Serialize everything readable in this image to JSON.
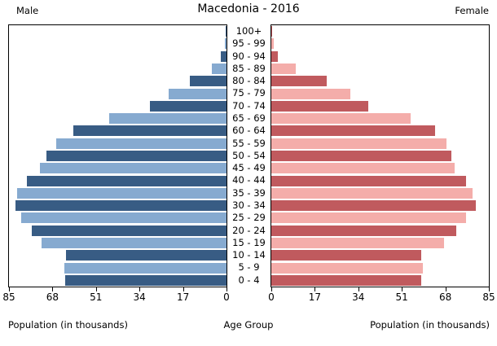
{
  "header": {
    "male_label": "Male",
    "female_label": "Female",
    "title": "Macedonia - 2016"
  },
  "footer": {
    "left_label": "Population (in thousands)",
    "center_label": "Age Group",
    "right_label": "Population (in thousands)"
  },
  "axis": {
    "left_ticks": [
      85,
      68,
      51,
      34,
      17,
      0
    ],
    "right_ticks": [
      0,
      17,
      34,
      51,
      68,
      85
    ]
  },
  "colors": {
    "male_dark": "#385c84",
    "male_light": "#86aad0",
    "female_dark": "#c05a5e",
    "female_light": "#f4adaa",
    "axis": "#000000"
  },
  "chart_data": {
    "type": "bar",
    "subtype": "population-pyramid",
    "title": "Macedonia - 2016",
    "xlabel": "Population (in thousands)",
    "ylabel": "Age Group",
    "xlim": [
      0,
      85
    ],
    "unit": "thousands",
    "grid": false,
    "categories_bottom_to_top": [
      "0 - 4",
      "5 - 9",
      "10 - 14",
      "15 - 19",
      "20 - 24",
      "25 - 29",
      "30 - 34",
      "35 - 39",
      "40 - 44",
      "45 - 49",
      "50 - 54",
      "55 - 59",
      "60 - 64",
      "65 - 69",
      "70 - 74",
      "75 - 79",
      "80 - 84",
      "85 - 89",
      "90 - 94",
      "95 - 99",
      "100+"
    ],
    "series": [
      {
        "name": "Male",
        "side": "left",
        "values": [
          62.9,
          63.3,
          62.8,
          72.2,
          76.2,
          80.2,
          82.6,
          81.7,
          78.1,
          72.8,
          70.4,
          66.6,
          60.0,
          46.0,
          29.8,
          22.5,
          14.3,
          5.7,
          2.1,
          0.7,
          0.2
        ]
      },
      {
        "name": "Female",
        "side": "right",
        "values": [
          58.6,
          59.1,
          58.5,
          67.5,
          72.2,
          76.2,
          79.8,
          78.7,
          76.0,
          71.5,
          70.5,
          68.4,
          64.0,
          54.5,
          38.0,
          30.8,
          21.8,
          9.6,
          2.6,
          0.8,
          0.3
        ]
      }
    ]
  }
}
